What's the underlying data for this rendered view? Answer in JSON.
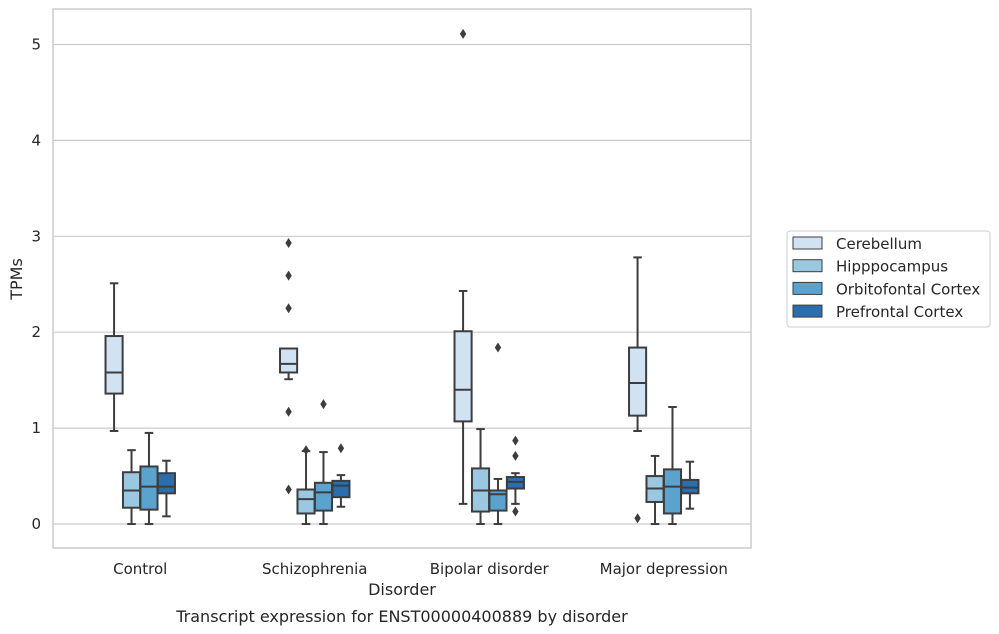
{
  "chart_data": {
    "type": "box",
    "caption": "Transcript expression for ENST00000400889 by disorder",
    "xlabel": "Disorder",
    "ylabel": "TPMs",
    "ylim": [
      -0.25,
      5.37
    ],
    "yticks": [
      0,
      1,
      2,
      3,
      4,
      5
    ],
    "grid": true,
    "legend_position": "right",
    "categories": [
      "Control",
      "Schizophrenia",
      "Bipolar disorder",
      "Major depression"
    ],
    "series": [
      {
        "name": "Cerebellum",
        "color": "#d1e2f2",
        "boxes": [
          {
            "q1": 1.36,
            "median": 1.58,
            "q3": 1.96,
            "whisker_low": 0.97,
            "whisker_high": 2.51,
            "outliers": []
          },
          {
            "q1": 1.58,
            "median": 1.67,
            "q3": 1.83,
            "whisker_low": 1.51,
            "whisker_high": 1.83,
            "outliers": [
              2.93,
              2.59,
              2.25,
              1.17,
              0.36
            ]
          },
          {
            "q1": 1.07,
            "median": 1.4,
            "q3": 2.01,
            "whisker_low": 0.21,
            "whisker_high": 2.43,
            "outliers": [
              5.11
            ]
          },
          {
            "q1": 1.13,
            "median": 1.47,
            "q3": 1.84,
            "whisker_low": 0.97,
            "whisker_high": 2.78,
            "outliers": [
              0.06
            ]
          }
        ]
      },
      {
        "name": "Hipppocampus",
        "color": "#9ac8e0",
        "boxes": [
          {
            "q1": 0.17,
            "median": 0.35,
            "q3": 0.54,
            "whisker_low": 0.0,
            "whisker_high": 0.77,
            "outliers": []
          },
          {
            "q1": 0.11,
            "median": 0.26,
            "q3": 0.36,
            "whisker_low": 0.0,
            "whisker_high": 0.76,
            "outliers": [
              0.77
            ]
          },
          {
            "q1": 0.13,
            "median": 0.35,
            "q3": 0.58,
            "whisker_low": 0.0,
            "whisker_high": 0.99,
            "outliers": []
          },
          {
            "q1": 0.23,
            "median": 0.37,
            "q3": 0.5,
            "whisker_low": 0.0,
            "whisker_high": 0.71,
            "outliers": []
          }
        ]
      },
      {
        "name": "Orbitofontal Cortex",
        "color": "#5ba3cf",
        "boxes": [
          {
            "q1": 0.15,
            "median": 0.39,
            "q3": 0.6,
            "whisker_low": 0.0,
            "whisker_high": 0.95,
            "outliers": []
          },
          {
            "q1": 0.14,
            "median": 0.33,
            "q3": 0.43,
            "whisker_low": 0.0,
            "whisker_high": 0.75,
            "outliers": [
              1.25
            ]
          },
          {
            "q1": 0.14,
            "median": 0.31,
            "q3": 0.35,
            "whisker_low": 0.0,
            "whisker_high": 0.47,
            "outliers": [
              1.84
            ]
          },
          {
            "q1": 0.11,
            "median": 0.39,
            "q3": 0.57,
            "whisker_low": 0.0,
            "whisker_high": 1.22,
            "outliers": []
          }
        ]
      },
      {
        "name": "Prefrontal Cortex",
        "color": "#2a6ead",
        "boxes": [
          {
            "q1": 0.32,
            "median": 0.39,
            "q3": 0.53,
            "whisker_low": 0.08,
            "whisker_high": 0.66,
            "outliers": []
          },
          {
            "q1": 0.28,
            "median": 0.4,
            "q3": 0.45,
            "whisker_low": 0.18,
            "whisker_high": 0.51,
            "outliers": [
              0.79
            ]
          },
          {
            "q1": 0.37,
            "median": 0.44,
            "q3": 0.49,
            "whisker_low": 0.21,
            "whisker_high": 0.53,
            "outliers": [
              0.87,
              0.71,
              0.13
            ]
          },
          {
            "q1": 0.32,
            "median": 0.38,
            "q3": 0.46,
            "whisker_low": 0.16,
            "whisker_high": 0.65,
            "outliers": []
          }
        ]
      }
    ]
  }
}
